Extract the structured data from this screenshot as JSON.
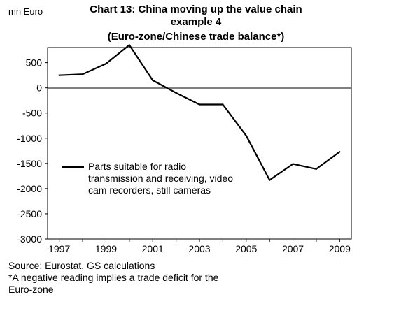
{
  "unit_label": "mn Euro",
  "title_lines": [
    "Chart 13: China moving up the value chain",
    "example 4",
    "(Euro-zone/Chinese trade balance*)"
  ],
  "footnotes": [
    "Source: Eurostat, GS calculations",
    "*A negative reading implies a trade deficit for the",
    "Euro-zone"
  ],
  "chart_data": {
    "type": "line",
    "x": [
      1997,
      1998,
      1999,
      2000,
      2001,
      2002,
      2003,
      2004,
      2005,
      2006,
      2007,
      2008,
      2009
    ],
    "series": [
      {
        "name": "Parts suitable for radio transmission and receiving, video cam recorders, still cameras",
        "values": [
          250,
          270,
          480,
          850,
          150,
          -100,
          -330,
          -330,
          -950,
          -1830,
          -1510,
          -1610,
          -1270
        ],
        "color": "#000000"
      }
    ],
    "legend_lines": [
      "Parts suitable for radio",
      "transmission and receiving, video",
      "cam recorders, still cameras"
    ],
    "xticks": [
      "1997",
      "1999",
      "2001",
      "2003",
      "2005",
      "2007",
      "2009"
    ],
    "yticks": [
      "500",
      "0",
      "-500",
      "-1000",
      "-1500",
      "-2000",
      "-2500",
      "-3000"
    ],
    "ylim": [
      -3000,
      800
    ],
    "xlim": [
      1996.5,
      2009.5
    ],
    "grid": false,
    "legend_position": "center-left"
  }
}
